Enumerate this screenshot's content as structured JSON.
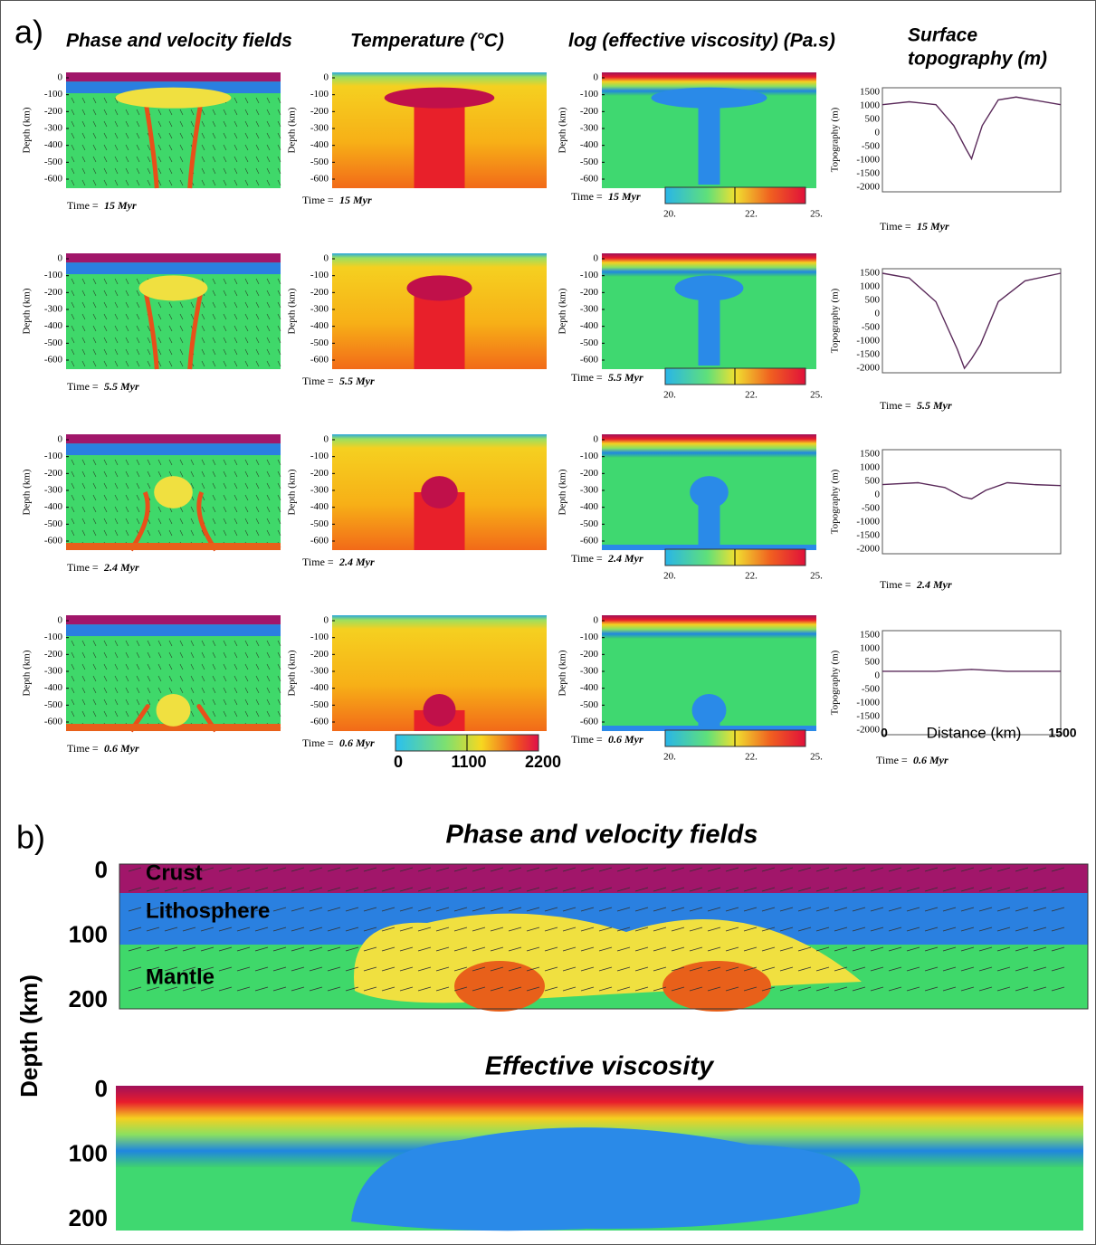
{
  "panel_a": {
    "label": "a)",
    "column_titles": [
      "Phase and velocity fields",
      "Temperature  (°C)",
      "log (effective viscosity)  (Pa.s)",
      "Surface",
      "topography  (m)"
    ],
    "depth_axis_label": "Depth  (km)",
    "depth_ticks": [
      "0",
      "-100",
      "-200",
      "-300",
      "-400",
      "-500",
      "-600"
    ],
    "topo_axis_label": "Topography  (m)",
    "topo_ticks": [
      "1500",
      "1000",
      "500",
      "0",
      "-500",
      "-1000",
      "-1500",
      "-2000"
    ],
    "time_prefix": "Time  =",
    "times": [
      "15 Myr",
      "5.5 Myr",
      "2.4 Myr",
      "0.6 Myr"
    ],
    "viscosity_colorbar_ticks": [
      "20.",
      "22.",
      "25."
    ],
    "temperature_colorbar_ticks": [
      "0",
      "1100",
      "2200"
    ],
    "distance_axis": {
      "min": "0",
      "label": "Distance  (km)",
      "max": "1500"
    }
  },
  "panel_b": {
    "label": "b)",
    "titles": [
      "Phase and velocity fields",
      "Effective viscosity"
    ],
    "depth_axis_label": "Depth  (km)",
    "depth_ticks": [
      "0",
      "100",
      "200"
    ],
    "layer_labels": [
      "Crust",
      "Lithosphere",
      "Mantle"
    ]
  }
}
